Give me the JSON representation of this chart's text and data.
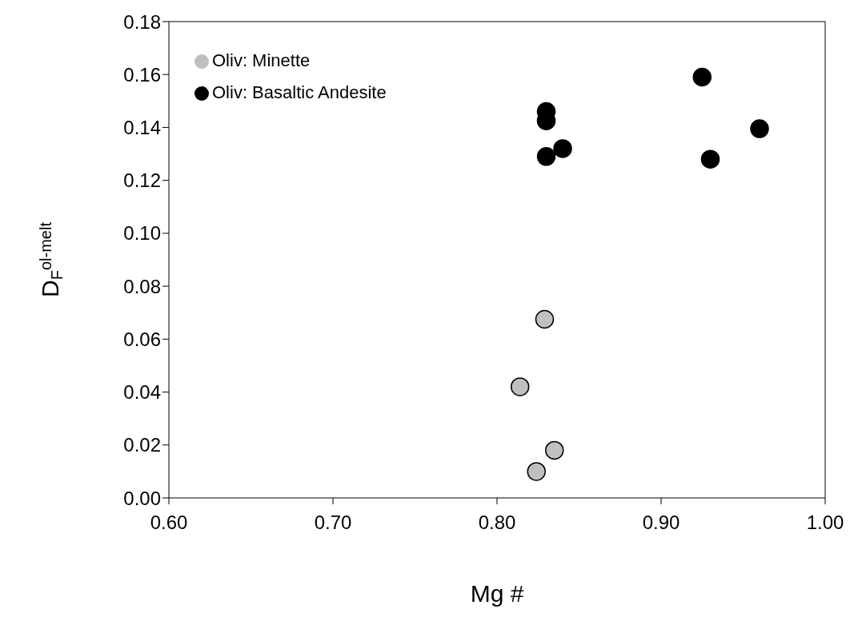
{
  "chart_data": {
    "type": "scatter",
    "xlabel": "Mg #",
    "ylabel": "D$_{F}$$^{ol-melt}$",
    "xlim": [
      0.6,
      1.0
    ],
    "xticks": [
      {
        "value": 0.6,
        "label": "0.60"
      },
      {
        "value": 0.7,
        "label": "0.70"
      },
      {
        "value": 0.8,
        "label": "0.80"
      },
      {
        "value": 0.9,
        "label": "0.90"
      },
      {
        "value": 1.0,
        "label": "1.00"
      }
    ],
    "ylim": [
      0,
      0.18
    ],
    "yticks": [
      {
        "value": 0,
        "label": "0.00"
      },
      {
        "value": 0.02,
        "label": "0.02"
      },
      {
        "value": 0.04,
        "label": "0.04"
      },
      {
        "value": 0.06,
        "label": "0.06"
      },
      {
        "value": 0.08,
        "label": "0.08"
      },
      {
        "value": 0.1,
        "label": "0.10"
      },
      {
        "value": 0.12,
        "label": "0.12"
      },
      {
        "value": 0.14,
        "label": "0.14"
      },
      {
        "value": 0.16,
        "label": "0.16"
      },
      {
        "value": 0.18,
        "label": "0.18"
      }
    ],
    "grid": false,
    "legend": "top left",
    "marker": "circle",
    "series": [
      {
        "name": "Oliv: Minette",
        "color": "#c0c0c0",
        "x": [
          0.829,
          0.814,
          0.835,
          0.824
        ],
        "values": [
          0.0675,
          0.042,
          0.018,
          0.01
        ]
      },
      {
        "name": "Oliv: Basaltic Andesite",
        "color": "#000000",
        "x": [
          0.925,
          0.83,
          0.83,
          0.83,
          0.84,
          0.93,
          0.96
        ],
        "values": [
          0.159,
          0.146,
          0.1425,
          0.129,
          0.132,
          0.128,
          0.1395
        ]
      }
    ]
  }
}
